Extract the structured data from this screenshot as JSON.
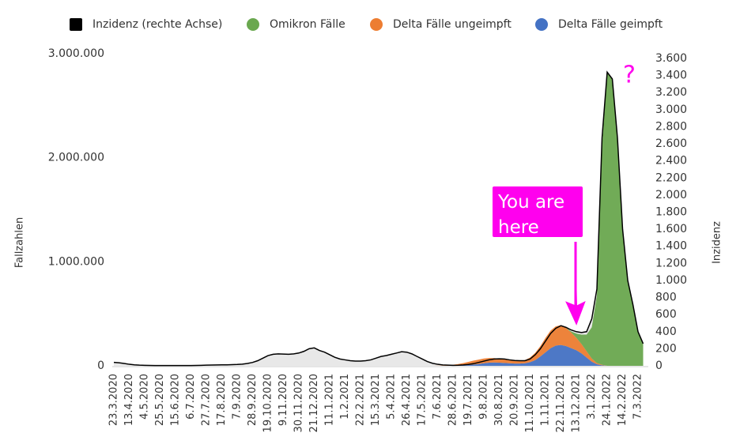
{
  "chart_data": {
    "type": "stacked_area",
    "y_label": "Fallzahlen",
    "y2_label": "Inzidenz",
    "annotations": [
      "You are here",
      "?"
    ],
    "categories": [
      "23.3.2020",
      null,
      null,
      "13.4.2020",
      null,
      null,
      "4.5.2020",
      null,
      null,
      "25.5.2020",
      null,
      null,
      "15.6.2020",
      null,
      null,
      "6.7.2020",
      null,
      null,
      "27.7.2020",
      null,
      null,
      "17.8.2020",
      null,
      null,
      "7.9.2020",
      null,
      null,
      "28.9.2020",
      null,
      null,
      "19.10.2020",
      null,
      null,
      "9.11.2020",
      null,
      null,
      "30.11.2020",
      null,
      null,
      "21.12.2020",
      null,
      null,
      "11.1.2021",
      null,
      null,
      "1.2.2021",
      null,
      null,
      "22.2.2021",
      null,
      null,
      "15.3.2021",
      null,
      null,
      "5.4.2021",
      null,
      null,
      "26.4.2021",
      null,
      null,
      "17.5.2021",
      null,
      null,
      "7.6.2021",
      null,
      null,
      "28.6.2021",
      null,
      null,
      "19.7.2021",
      null,
      null,
      "9.8.2021",
      null,
      null,
      "30.8.2021",
      null,
      null,
      "20.9.2021",
      null,
      null,
      "11.10.2021",
      null,
      null,
      "1.11.2021",
      null,
      null,
      "22.11.2021",
      null,
      null,
      "13.12.2021",
      null,
      null,
      "3.1.2022",
      null,
      null,
      "24.1.2022",
      null,
      null,
      "14.2.2022",
      null,
      null,
      "7.3.2022",
      null
    ],
    "series": [
      {
        "name": "Inzidenz (rechte Achse)",
        "color": "#000000",
        "fill": "#e8e8e8",
        "axis": "y2",
        "values": [
          40,
          36,
          28,
          18,
          12,
          8,
          6,
          5,
          4,
          4,
          3,
          3,
          3,
          3,
          4,
          4,
          5,
          6,
          8,
          9,
          10,
          11,
          12,
          14,
          16,
          20,
          28,
          40,
          60,
          90,
          120,
          135,
          140,
          138,
          135,
          140,
          150,
          170,
          200,
          210,
          180,
          160,
          130,
          100,
          80,
          70,
          60,
          55,
          55,
          60,
          70,
          90,
          110,
          120,
          135,
          150,
          165,
          160,
          140,
          110,
          80,
          50,
          30,
          18,
          10,
          8,
          6,
          7,
          10,
          16,
          25,
          40,
          55,
          70,
          80,
          82,
          80,
          70,
          62,
          60,
          60,
          80,
          130,
          200,
          290,
          380,
          440,
          470,
          450,
          420,
          400,
          390,
          400,
          550,
          900,
          2670,
          3440,
          3360,
          2670,
          1600,
          1000,
          720,
          400,
          260
        ]
      },
      {
        "name": "Omikron Fälle",
        "color": "#6aa84f",
        "values": [
          0,
          0,
          0,
          0,
          0,
          0,
          0,
          0,
          0,
          0,
          0,
          0,
          0,
          0,
          0,
          0,
          0,
          0,
          0,
          0,
          0,
          0,
          0,
          0,
          0,
          0,
          0,
          0,
          0,
          0,
          0,
          0,
          0,
          0,
          0,
          0,
          0,
          0,
          0,
          0,
          0,
          0,
          0,
          0,
          0,
          0,
          0,
          0,
          0,
          0,
          0,
          0,
          0,
          0,
          0,
          0,
          0,
          0,
          0,
          0,
          0,
          0,
          0,
          0,
          0,
          0,
          0,
          0,
          0,
          0,
          0,
          0,
          0,
          0,
          0,
          0,
          0,
          0,
          0,
          0,
          0,
          0,
          0,
          0,
          0,
          0,
          0,
          0,
          2000,
          10000,
          40000,
          90000,
          160000,
          300000,
          650000,
          2100000,
          2820000,
          2760000,
          2150000,
          1300000,
          820000,
          580000,
          330000,
          210000
        ]
      },
      {
        "name": "Delta Fälle ungeimpft",
        "color": "#ed7d31",
        "values": [
          0,
          0,
          0,
          0,
          0,
          0,
          0,
          0,
          0,
          0,
          0,
          0,
          0,
          0,
          0,
          0,
          0,
          0,
          0,
          0,
          0,
          0,
          0,
          0,
          0,
          0,
          0,
          0,
          0,
          0,
          0,
          0,
          0,
          0,
          0,
          0,
          0,
          0,
          0,
          0,
          0,
          0,
          0,
          0,
          0,
          0,
          0,
          0,
          0,
          0,
          0,
          0,
          0,
          0,
          0,
          0,
          0,
          0,
          0,
          0,
          0,
          0,
          0,
          1000,
          2000,
          4000,
          8000,
          14000,
          22000,
          30000,
          38000,
          42000,
          45000,
          45000,
          42000,
          38000,
          32000,
          28000,
          25000,
          25000,
          30000,
          45000,
          70000,
          100000,
          140000,
          170000,
          185000,
          190000,
          175000,
          150000,
          120000,
          90000,
          60000,
          30000,
          12000,
          5000,
          0,
          0,
          0,
          0,
          0,
          0,
          0,
          0
        ]
      },
      {
        "name": "Delta Fälle geimpft",
        "color": "#4472c4",
        "values": [
          0,
          0,
          0,
          0,
          0,
          0,
          0,
          0,
          0,
          0,
          0,
          0,
          0,
          0,
          0,
          0,
          0,
          0,
          0,
          0,
          0,
          0,
          0,
          0,
          0,
          0,
          0,
          0,
          0,
          0,
          0,
          0,
          0,
          0,
          0,
          0,
          0,
          0,
          0,
          0,
          0,
          0,
          0,
          0,
          0,
          0,
          0,
          0,
          0,
          0,
          0,
          0,
          0,
          0,
          0,
          0,
          0,
          0,
          0,
          0,
          0,
          0,
          0,
          0,
          0,
          0,
          2000,
          3000,
          5000,
          8000,
          12000,
          18000,
          25000,
          30000,
          32000,
          30000,
          28000,
          25000,
          22000,
          22000,
          25000,
          35000,
          55000,
          90000,
          130000,
          170000,
          195000,
          200000,
          190000,
          170000,
          150000,
          120000,
          80000,
          40000,
          15000,
          5000,
          0,
          0,
          0,
          0,
          0,
          0,
          0,
          0
        ]
      }
    ],
    "ylim": [
      0,
      3000000
    ],
    "yticks": [
      0,
      {
        "value": 1000000,
        "label": "1.000.000"
      },
      {
        "value": 2000000,
        "label": "2.000.000"
      },
      {
        "value": 3000000,
        "label": "3.000.000"
      }
    ],
    "y2lim": [
      0,
      3600
    ],
    "y2ticks": [
      0,
      200,
      400,
      600,
      800,
      {
        "value": 1000,
        "label": "1.000"
      },
      {
        "value": 1200,
        "label": "1.200"
      },
      {
        "value": 1400,
        "label": "1.400"
      },
      {
        "value": 1600,
        "label": "1.600"
      },
      {
        "value": 1800,
        "label": "1.800"
      },
      {
        "value": 2000,
        "label": "2.000"
      },
      {
        "value": 2200,
        "label": "2.200"
      },
      {
        "value": 2400,
        "label": "2.400"
      },
      {
        "value": 2600,
        "label": "2.600"
      },
      {
        "value": 2800,
        "label": "2.800"
      },
      {
        "value": 3000,
        "label": "3.000"
      },
      {
        "value": 3200,
        "label": "3.200"
      },
      {
        "value": 3400,
        "label": "3.400"
      },
      {
        "value": 3600,
        "label": "3.600"
      }
    ],
    "grid": false,
    "legend": "top"
  }
}
